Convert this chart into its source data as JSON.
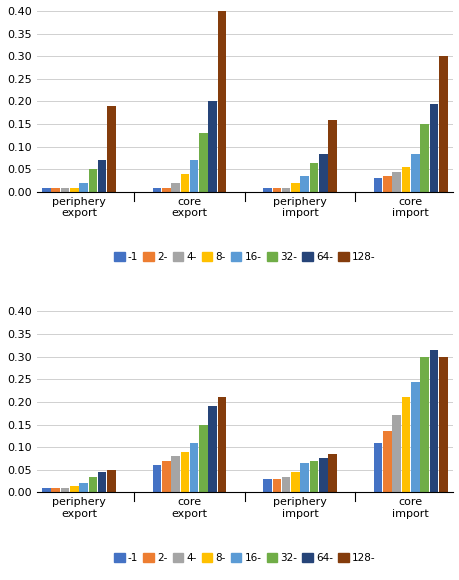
{
  "legend_labels": [
    "-1",
    "2-",
    "4-",
    "8-",
    "16-",
    "32-",
    "64-",
    "128-"
  ],
  "colors": [
    "#4472c4",
    "#ed7d31",
    "#a5a5a5",
    "#ffc000",
    "#5b9bd5",
    "#70ad47",
    "#264478",
    "#843c0c"
  ],
  "top": {
    "groups": [
      "periphery\nexport",
      "core\nexport",
      "periphery\nimport",
      "core\nimport"
    ],
    "values": [
      [
        0.01,
        0.01,
        0.01,
        0.01,
        0.02,
        0.05,
        0.07,
        0.19
      ],
      [
        0.01,
        0.01,
        0.02,
        0.04,
        0.07,
        0.13,
        0.2,
        0.4
      ],
      [
        0.01,
        0.01,
        0.01,
        0.02,
        0.035,
        0.065,
        0.085,
        0.16
      ],
      [
        0.03,
        0.035,
        0.045,
        0.055,
        0.085,
        0.15,
        0.195,
        0.3
      ]
    ]
  },
  "bottom": {
    "groups": [
      "periphery\nexport",
      "core\nexport",
      "periphery\nimport",
      "core\nimport"
    ],
    "values": [
      [
        0.01,
        0.01,
        0.01,
        0.015,
        0.02,
        0.035,
        0.045,
        0.05
      ],
      [
        0.06,
        0.07,
        0.08,
        0.09,
        0.11,
        0.15,
        0.19,
        0.21
      ],
      [
        0.03,
        0.03,
        0.035,
        0.045,
        0.065,
        0.07,
        0.075,
        0.085
      ],
      [
        0.11,
        0.135,
        0.17,
        0.21,
        0.245,
        0.3,
        0.315,
        0.3
      ]
    ]
  },
  "ylim": [
    0,
    0.4
  ],
  "yticks": [
    0,
    0.05,
    0.1,
    0.15,
    0.2,
    0.25,
    0.3,
    0.35,
    0.4
  ],
  "background_color": "#ffffff"
}
